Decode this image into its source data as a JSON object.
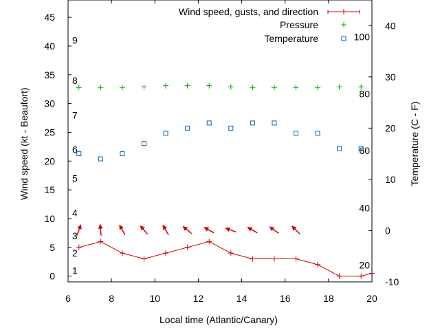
{
  "chart_data": {
    "type": "line",
    "xlabel": "Local time (Atlantic/Canary)",
    "ylabel": "Wind speed (kt - Beaufort)",
    "y2label": "Temperature (C - F)",
    "xlim": [
      6,
      20
    ],
    "ylim": [
      -1,
      48
    ],
    "y2lim": [
      -10,
      45
    ],
    "x_ticks": [
      "6",
      "8",
      "10",
      "12",
      "14",
      "16",
      "18",
      "20"
    ],
    "y_ticks": [
      "0",
      "5",
      "10",
      "15",
      "20",
      "25",
      "30",
      "35",
      "40",
      "45"
    ],
    "y2_ticks": [
      "-10",
      "0",
      "10",
      "20",
      "30",
      "40"
    ],
    "beaufort_labels": [
      {
        "text": "1",
        "kt": 1
      },
      {
        "text": "2",
        "kt": 4
      },
      {
        "text": "3",
        "kt": 7
      },
      {
        "text": "4",
        "kt": 11
      },
      {
        "text": "5",
        "kt": 17
      },
      {
        "text": "6",
        "kt": 22
      },
      {
        "text": "7",
        "kt": 28
      },
      {
        "text": "8",
        "kt": 34
      },
      {
        "text": "9",
        "kt": 41
      }
    ],
    "fahrenheit_labels": [
      {
        "text": "20",
        "celsius": -6.7
      },
      {
        "text": "40",
        "celsius": 4.4
      },
      {
        "text": "60",
        "celsius": 15.6
      },
      {
        "text": "80",
        "celsius": 26.7
      },
      {
        "text": "100",
        "celsius": 37.8
      }
    ],
    "series": [
      {
        "name": "Wind speed, gusts, and direction",
        "color": "#cc0000",
        "x": [
          6.5,
          7.5,
          8.5,
          9.5,
          10.5,
          11.5,
          12.5,
          13.5,
          14.5,
          15.5,
          16.5,
          17.5,
          18.5,
          19.5,
          20
        ],
        "values": [
          5,
          6,
          4,
          3,
          4,
          5,
          6,
          4,
          3,
          3,
          3,
          2,
          0,
          0,
          0.5
        ],
        "arrow_x": [
          6.5,
          7.5,
          8.5,
          9.5,
          10.5,
          11.5,
          12.5,
          13.5,
          14.5,
          15.5,
          16.5
        ],
        "arrow_direction_deg": [
          200,
          175,
          150,
          140,
          150,
          130,
          120,
          110,
          120,
          125,
          135
        ]
      },
      {
        "name": "Pressure",
        "color": "#00a000",
        "x": [
          6.5,
          7.5,
          8.5,
          9.5,
          10.5,
          11.5,
          12.5,
          13.5,
          14.5,
          15.5,
          16.5,
          17.5,
          18.5,
          19.5
        ],
        "values": [
          32.8,
          32.8,
          32.8,
          32.9,
          33.1,
          33.1,
          33.1,
          32.9,
          32.8,
          32.8,
          32.8,
          32.8,
          32.9,
          32.9
        ]
      },
      {
        "name": "Temperature",
        "color": "#0060c0",
        "x": [
          6.5,
          7.5,
          8.5,
          9.5,
          10.5,
          11.5,
          12.5,
          13.5,
          14.5,
          15.5,
          16.5,
          17.5,
          18.5,
          19.5
        ],
        "values": [
          15,
          14,
          15,
          17,
          19,
          20,
          21,
          20,
          21,
          21,
          19,
          19,
          16,
          16
        ]
      }
    ],
    "legend_position": "top-right"
  }
}
